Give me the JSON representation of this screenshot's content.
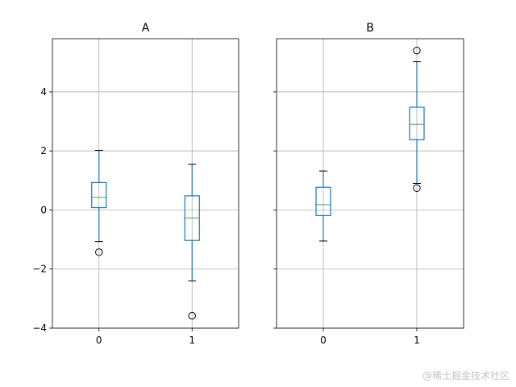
{
  "chart_data": {
    "type": "boxplot",
    "ylim": [
      -4,
      5.8
    ],
    "yticks": [
      -4,
      -2,
      0,
      2,
      4
    ],
    "ytick_labels": [
      "−4",
      "−2",
      "0",
      "2",
      "4"
    ],
    "grid": true,
    "box_color": "#1f77b4",
    "median_color": "#2ca02c",
    "panels": [
      {
        "title": "A",
        "categories": [
          "0",
          "1"
        ],
        "boxes": [
          {
            "whislo": -1.07,
            "q1": 0.08,
            "med": 0.43,
            "q3": 0.93,
            "whishi": 2.02,
            "fliers": [
              -1.43
            ]
          },
          {
            "whislo": -2.4,
            "q1": -1.03,
            "med": -0.27,
            "q3": 0.48,
            "whishi": 1.55,
            "fliers": [
              -3.58
            ]
          }
        ]
      },
      {
        "title": "B",
        "categories": [
          "0",
          "1"
        ],
        "boxes": [
          {
            "whislo": -1.05,
            "q1": -0.19,
            "med": 0.18,
            "q3": 0.77,
            "whishi": 1.32,
            "fliers": []
          },
          {
            "whislo": 0.9,
            "q1": 2.38,
            "med": 2.9,
            "q3": 3.48,
            "whishi": 5.02,
            "fliers": [
              0.74,
              5.4
            ]
          }
        ]
      }
    ]
  },
  "watermark": "@稀土掘金技术社区"
}
